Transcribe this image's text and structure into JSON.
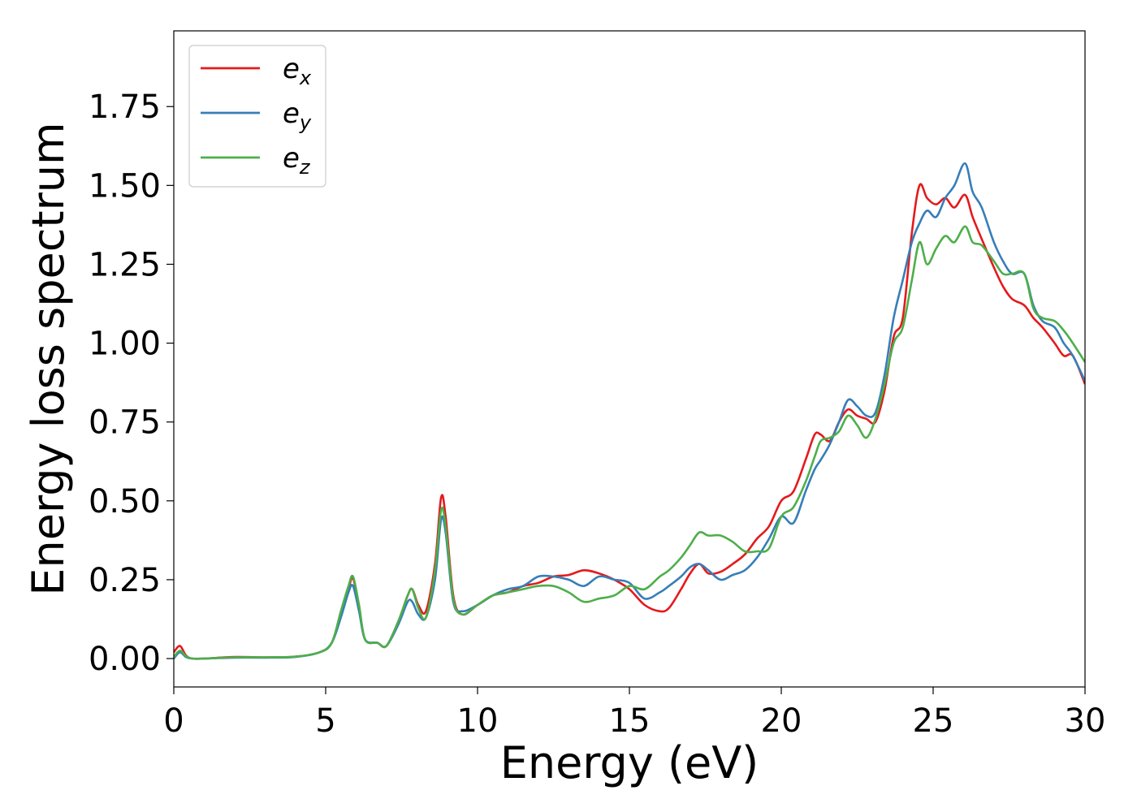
{
  "chart_data": {
    "type": "line",
    "title": "",
    "xlabel": "Energy (eV)",
    "ylabel": "Energy loss spectrum",
    "xlim": [
      0,
      30
    ],
    "ylim": [
      -0.09,
      1.99
    ],
    "xticks": [
      0,
      5,
      10,
      15,
      20,
      25,
      30
    ],
    "yticks": [
      0.0,
      0.25,
      0.5,
      0.75,
      1.0,
      1.25,
      1.5,
      1.75
    ],
    "xtick_labels": [
      "0",
      "5",
      "10",
      "15",
      "20",
      "25",
      "30"
    ],
    "ytick_labels": [
      "0.00",
      "0.25",
      "0.50",
      "0.75",
      "1.00",
      "1.25",
      "1.50",
      "1.75"
    ],
    "grid": false,
    "legend": {
      "placement": "top-left"
    },
    "series": [
      {
        "name": "e",
        "sub": "x",
        "color": "#e41a1c",
        "x": [
          0,
          0.2,
          0.4,
          0.6,
          1,
          2,
          3,
          4,
          4.8,
          5.2,
          5.5,
          5.75,
          5.9,
          6.1,
          6.3,
          6.7,
          7,
          7.4,
          7.7,
          7.85,
          8.05,
          8.3,
          8.6,
          8.8,
          8.95,
          9.2,
          9.5,
          10,
          10.5,
          11,
          11.5,
          12,
          12.5,
          13,
          13.5,
          14,
          14.5,
          15,
          15.5,
          16,
          16.3,
          16.7,
          17,
          17.3,
          17.6,
          18,
          18.4,
          18.8,
          19.2,
          19.6,
          20,
          20.4,
          20.8,
          21.1,
          21.3,
          21.6,
          21.9,
          22.2,
          22.5,
          22.8,
          23.1,
          23.4,
          23.7,
          24,
          24.3,
          24.55,
          24.8,
          25.1,
          25.4,
          25.7,
          26.05,
          26.3,
          26.6,
          27,
          27.3,
          27.6,
          28,
          28.3,
          28.6,
          29,
          29.3,
          29.6,
          30
        ],
        "y": [
          0.02,
          0.04,
          0.01,
          0.0,
          0.0,
          0.005,
          0.004,
          0.006,
          0.02,
          0.05,
          0.14,
          0.22,
          0.255,
          0.16,
          0.06,
          0.05,
          0.04,
          0.12,
          0.2,
          0.22,
          0.17,
          0.15,
          0.3,
          0.51,
          0.45,
          0.2,
          0.14,
          0.17,
          0.2,
          0.21,
          0.23,
          0.24,
          0.26,
          0.265,
          0.28,
          0.27,
          0.25,
          0.22,
          0.17,
          0.15,
          0.16,
          0.22,
          0.27,
          0.3,
          0.27,
          0.275,
          0.3,
          0.33,
          0.38,
          0.42,
          0.5,
          0.53,
          0.63,
          0.71,
          0.71,
          0.69,
          0.75,
          0.79,
          0.77,
          0.76,
          0.75,
          0.85,
          1.02,
          1.08,
          1.35,
          1.5,
          1.46,
          1.44,
          1.46,
          1.43,
          1.47,
          1.4,
          1.33,
          1.24,
          1.18,
          1.14,
          1.12,
          1.08,
          1.05,
          1.0,
          0.96,
          0.96,
          0.87
        ]
      },
      {
        "name": "e",
        "sub": "y",
        "color": "#377eb8",
        "x": [
          0,
          0.2,
          0.4,
          0.6,
          1,
          2,
          3,
          4,
          4.8,
          5.2,
          5.5,
          5.75,
          5.9,
          6.1,
          6.3,
          6.7,
          7,
          7.4,
          7.7,
          7.85,
          8.05,
          8.3,
          8.6,
          8.8,
          8.95,
          9.2,
          9.5,
          10,
          10.5,
          11,
          11.5,
          12,
          12.5,
          13,
          13.5,
          14,
          14.5,
          15,
          15.5,
          16,
          16.3,
          16.7,
          17,
          17.3,
          17.6,
          18,
          18.4,
          18.8,
          19.2,
          19.6,
          20,
          20.4,
          20.8,
          21.1,
          21.3,
          21.6,
          21.9,
          22.2,
          22.5,
          22.8,
          23.1,
          23.4,
          23.7,
          24,
          24.3,
          24.55,
          24.8,
          25.1,
          25.4,
          25.7,
          26.05,
          26.3,
          26.6,
          27,
          27.3,
          27.6,
          28,
          28.3,
          28.6,
          29,
          29.3,
          29.6,
          30
        ],
        "y": [
          0.0,
          0.02,
          0.005,
          0.0,
          0.0,
          0.003,
          0.003,
          0.005,
          0.02,
          0.05,
          0.13,
          0.21,
          0.23,
          0.15,
          0.06,
          0.05,
          0.04,
          0.11,
          0.18,
          0.18,
          0.14,
          0.13,
          0.25,
          0.44,
          0.4,
          0.18,
          0.15,
          0.17,
          0.2,
          0.22,
          0.23,
          0.26,
          0.26,
          0.25,
          0.23,
          0.26,
          0.25,
          0.24,
          0.19,
          0.21,
          0.23,
          0.26,
          0.29,
          0.3,
          0.28,
          0.25,
          0.265,
          0.28,
          0.32,
          0.38,
          0.45,
          0.43,
          0.53,
          0.6,
          0.63,
          0.68,
          0.75,
          0.82,
          0.8,
          0.77,
          0.78,
          0.9,
          1.08,
          1.2,
          1.32,
          1.38,
          1.42,
          1.4,
          1.46,
          1.5,
          1.57,
          1.48,
          1.43,
          1.32,
          1.26,
          1.22,
          1.22,
          1.12,
          1.07,
          1.05,
          1.0,
          0.96,
          0.88
        ]
      },
      {
        "name": "e",
        "sub": "z",
        "color": "#4daf4a",
        "x": [
          0,
          0.2,
          0.4,
          0.6,
          1,
          2,
          3,
          4,
          4.8,
          5.2,
          5.5,
          5.75,
          5.9,
          6.1,
          6.3,
          6.7,
          7,
          7.4,
          7.7,
          7.85,
          8.05,
          8.3,
          8.6,
          8.8,
          8.95,
          9.2,
          9.5,
          10,
          10.5,
          11,
          11.5,
          12,
          12.5,
          13,
          13.5,
          14,
          14.5,
          15,
          15.5,
          16,
          16.3,
          16.7,
          17,
          17.3,
          17.6,
          18,
          18.4,
          18.8,
          19.2,
          19.6,
          20,
          20.4,
          20.8,
          21.1,
          21.3,
          21.6,
          21.9,
          22.2,
          22.5,
          22.8,
          23.1,
          23.4,
          23.7,
          24,
          24.3,
          24.55,
          24.8,
          25.1,
          25.4,
          25.7,
          26.05,
          26.3,
          26.6,
          27,
          27.3,
          27.6,
          28,
          28.3,
          28.6,
          29,
          29.3,
          29.6,
          30
        ],
        "y": [
          0.005,
          0.025,
          0.008,
          0.0,
          0.0,
          0.004,
          0.004,
          0.006,
          0.02,
          0.05,
          0.15,
          0.23,
          0.26,
          0.17,
          0.06,
          0.05,
          0.04,
          0.12,
          0.2,
          0.22,
          0.16,
          0.13,
          0.28,
          0.47,
          0.42,
          0.19,
          0.14,
          0.17,
          0.2,
          0.21,
          0.22,
          0.23,
          0.23,
          0.21,
          0.18,
          0.19,
          0.2,
          0.23,
          0.22,
          0.26,
          0.28,
          0.32,
          0.36,
          0.4,
          0.39,
          0.39,
          0.37,
          0.34,
          0.34,
          0.35,
          0.45,
          0.48,
          0.56,
          0.64,
          0.69,
          0.7,
          0.72,
          0.77,
          0.74,
          0.7,
          0.76,
          0.87,
          1.0,
          1.05,
          1.2,
          1.32,
          1.25,
          1.3,
          1.34,
          1.32,
          1.37,
          1.32,
          1.31,
          1.26,
          1.22,
          1.22,
          1.22,
          1.11,
          1.08,
          1.07,
          1.04,
          1.0,
          0.94
        ]
      }
    ]
  }
}
